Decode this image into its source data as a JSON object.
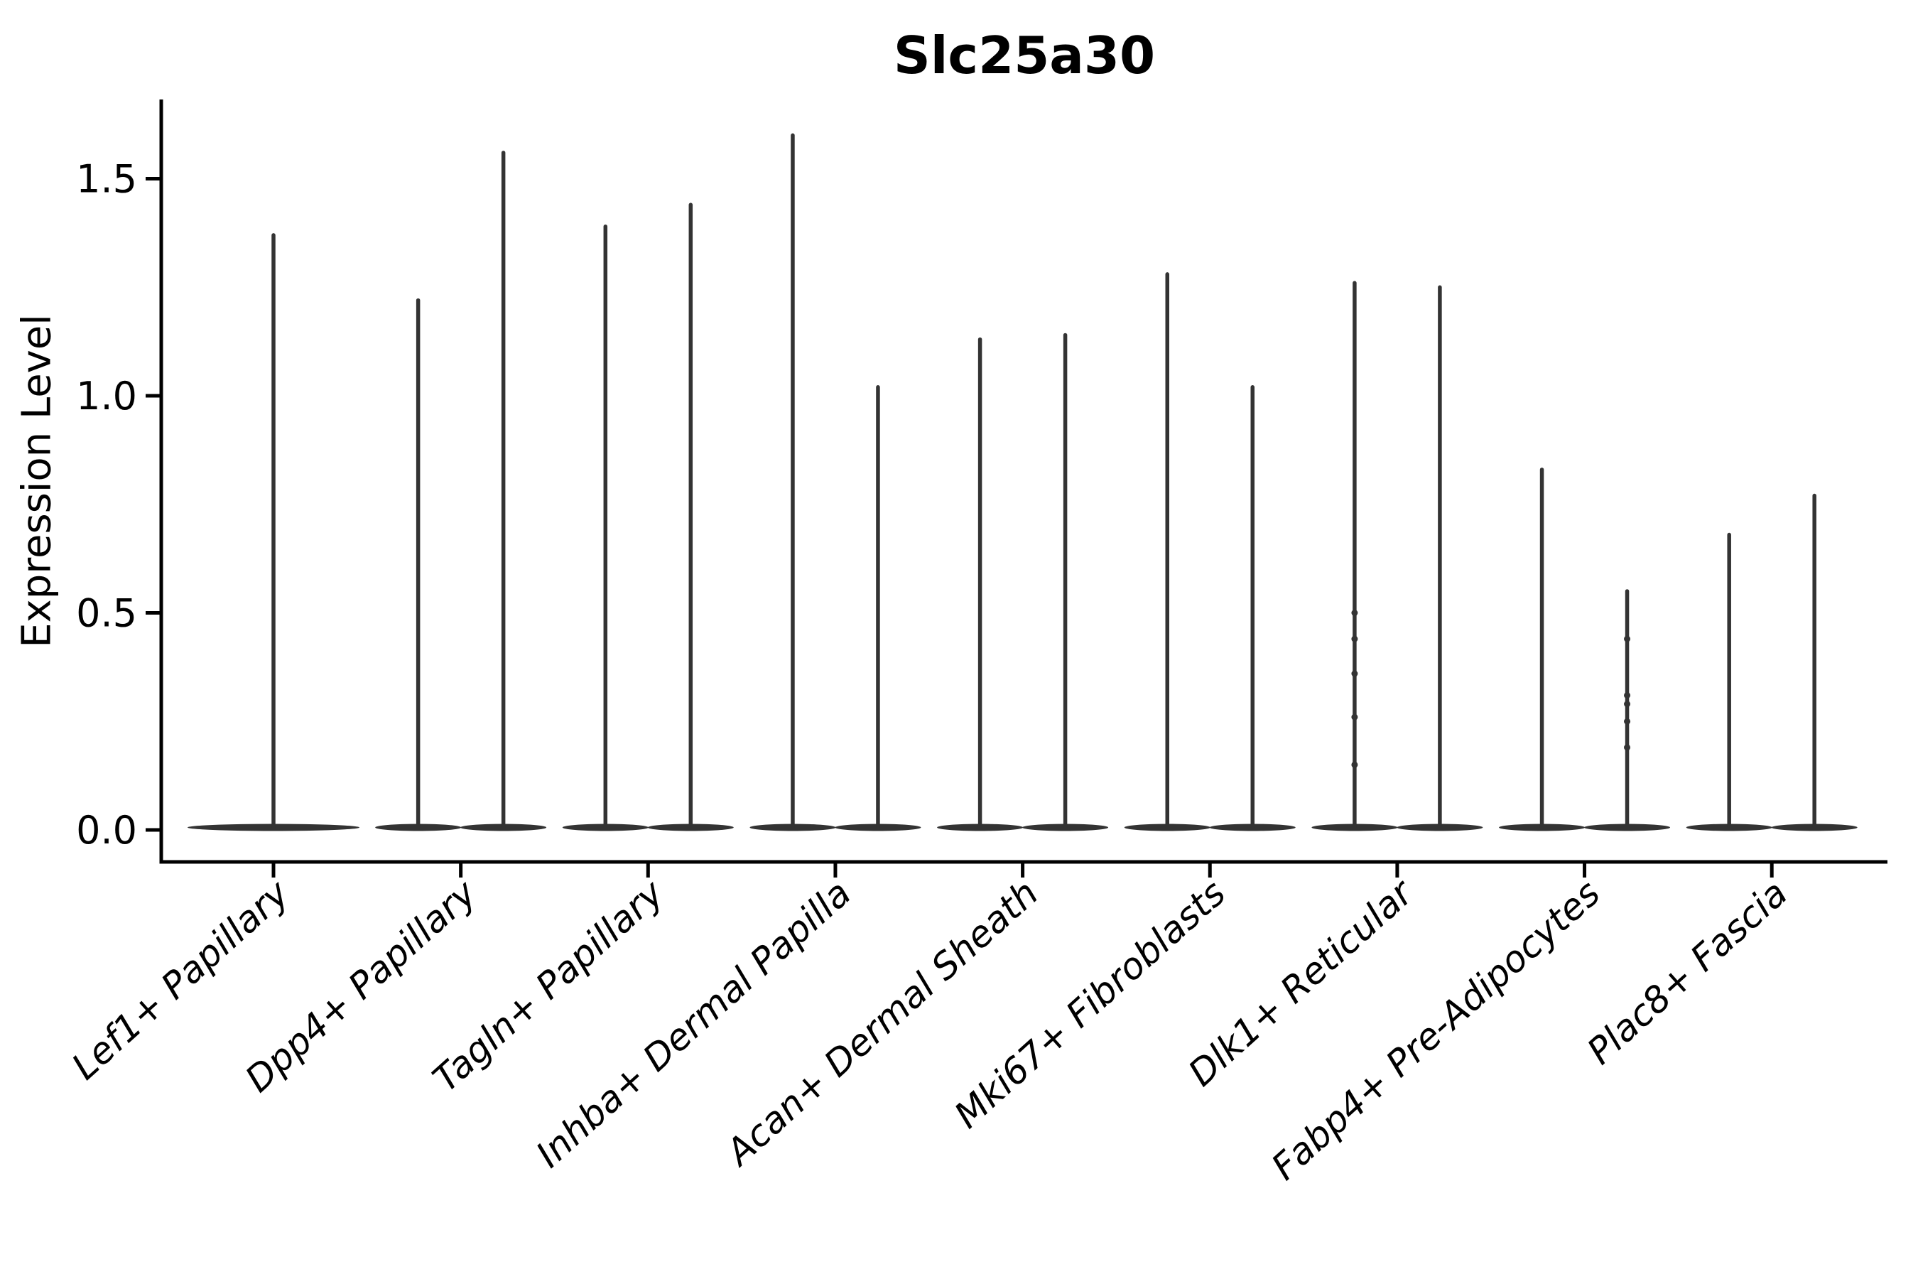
{
  "title": "Slc25a30",
  "axes": {
    "ylabel": "Expression Level",
    "ytick_labels": [
      "0.0",
      "0.5",
      "1.0",
      "1.5"
    ]
  },
  "chart_data": {
    "type": "violin",
    "title": "Slc25a30",
    "xlabel": "",
    "ylabel": "Expression Level",
    "ylim": [
      -0.08,
      1.68
    ],
    "yticks": [
      0.0,
      0.5,
      1.0,
      1.5
    ],
    "ytick_labels": [
      "0.0",
      "0.5",
      "1.0",
      "1.5"
    ],
    "grid": false,
    "legend": "none",
    "violin_color": "#333333",
    "axis_color": "#000000",
    "categories": [
      "Lef1+ Papillary",
      "Dpp4+ Papillary",
      "Tagln+ Papillary",
      "Inhba+ Dermal Papilla",
      "Acan+ Dermal Sheath",
      "Mki67+ Fibroblasts",
      "Dlk1+ Reticular",
      "Fabp4+ Pre-Adipocytes",
      "Plac8+ Fascia"
    ],
    "series": [
      {
        "category": "Lef1+ Papillary",
        "violin_maxima": [
          1.37
        ]
      },
      {
        "category": "Dpp4+ Papillary",
        "violin_maxima": [
          1.22,
          1.56
        ]
      },
      {
        "category": "Tagln+ Papillary",
        "violin_maxima": [
          1.39,
          1.44
        ]
      },
      {
        "category": "Inhba+ Dermal Papilla",
        "violin_maxima": [
          1.6,
          1.02
        ]
      },
      {
        "category": "Acan+ Dermal Sheath",
        "violin_maxima": [
          1.13,
          1.14
        ]
      },
      {
        "category": "Mki67+ Fibroblasts",
        "violin_maxima": [
          1.28,
          1.02
        ]
      },
      {
        "category": "Dlk1+ Reticular",
        "violin_maxima": [
          1.26,
          1.25
        ],
        "inner_points": {
          "violin": 0,
          "values": [
            0.5,
            0.44,
            0.36,
            0.26,
            0.15
          ]
        }
      },
      {
        "category": "Fabp4+ Pre-Adipocytes",
        "violin_maxima": [
          0.83,
          0.55
        ],
        "inner_points": {
          "violin": 1,
          "values": [
            0.44,
            0.31,
            0.29,
            0.25,
            0.19
          ]
        }
      },
      {
        "category": "Plac8+ Fascia",
        "violin_maxima": [
          0.68,
          0.77
        ]
      }
    ],
    "description": "Mostly-zero expression violins: wide flat body at 0 with a thin spike up to the max expression value. Categories 2-9 contain two violins each; category 1 contains a single centered violin."
  }
}
